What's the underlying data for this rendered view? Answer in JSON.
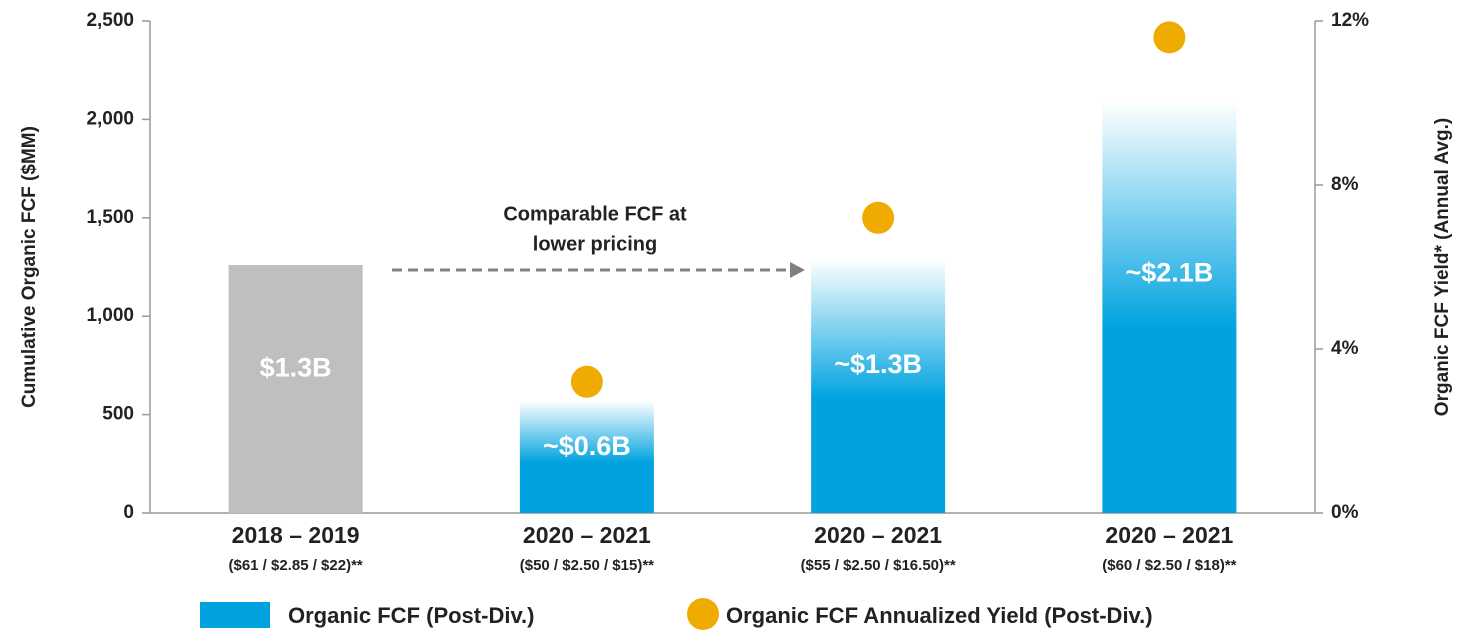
{
  "chart_data": {
    "type": "bar",
    "y_label": "Cumulative Organic FCF ($MM)",
    "y2_label": "Organic FCF Yield* (Annual Avg.)",
    "categories": [
      "2018 – 2019",
      "2020 – 2021",
      "2020 – 2021",
      "2020 – 2021"
    ],
    "category_notes": [
      "($61 / $2.85 / $22)**",
      "($50 / $2.50 / $15)**",
      "($55 / $2.50 / $16.50)**",
      "($60 / $2.50 / $18)**"
    ],
    "annotation": [
      "Comparable FCF at",
      "lower pricing"
    ],
    "ylim": [
      0,
      2500
    ],
    "yticks": [
      0,
      500,
      {
        "value": 1000,
        "label": "1,000"
      },
      {
        "value": 1500,
        "label": "1,500"
      },
      {
        "value": 2000,
        "label": "2,000"
      },
      {
        "value": 2500,
        "label": "2,500"
      }
    ],
    "y2lim": [
      0,
      12
    ],
    "y2ticks": [
      {
        "value": 0,
        "label": "0%"
      },
      {
        "value": 4,
        "label": "4%"
      },
      {
        "value": 8,
        "label": "8%"
      },
      {
        "value": 12,
        "label": "12%"
      }
    ],
    "series": [
      {
        "name": "Organic FCF (Post-Div.)",
        "type": "bar",
        "color": "#00a3e0",
        "colors": [
          "#bfbfbf",
          "#00a3e0",
          "#00a3e0",
          "#00a3e0"
        ],
        "values": [
          1260,
          570,
          1290,
          2090
        ],
        "value_labels": [
          "$1.3B",
          "~$0.6B",
          "~$1.3B",
          "~$2.1B"
        ]
      },
      {
        "name": "Organic FCF Annualized Yield (Post-Div.)",
        "type": "scatter",
        "axis": "y2",
        "color": "#f0ab00",
        "values": [
          null,
          3.2,
          7.2,
          11.6
        ]
      }
    ]
  }
}
